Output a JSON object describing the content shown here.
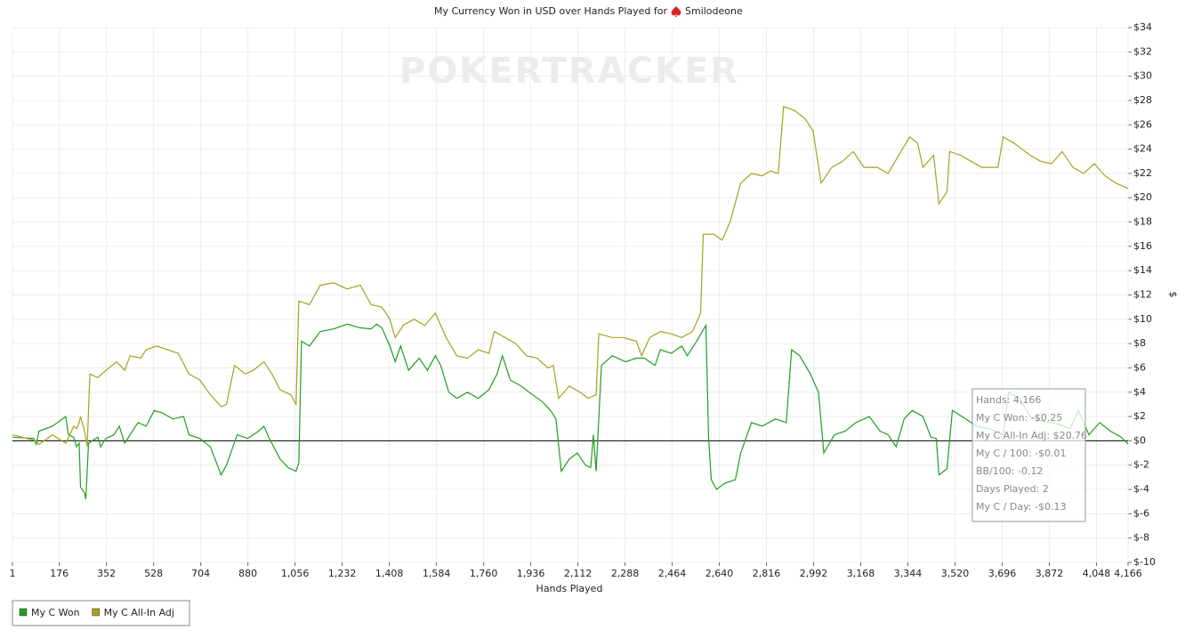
{
  "chart_data": {
    "type": "line",
    "title": "My Currency Won in USD over Hands Played for",
    "player": "Smilodeone",
    "watermark": "POKERTRACKER",
    "xlabel": "Hands Played",
    "ylabel": "$",
    "xlim": [
      1,
      4166
    ],
    "ylim": [
      -10,
      34
    ],
    "xticks": [
      1,
      176,
      352,
      528,
      704,
      880,
      {
        "value": 1056,
        "label": "1,056"
      },
      {
        "value": 1232,
        "label": "1,232"
      },
      {
        "value": 1408,
        "label": "1,408"
      },
      {
        "value": 1584,
        "label": "1,584"
      },
      {
        "value": 1760,
        "label": "1,760"
      },
      {
        "value": 1936,
        "label": "1,936"
      },
      {
        "value": 2112,
        "label": "2,112"
      },
      {
        "value": 2288,
        "label": "2,288"
      },
      {
        "value": 2464,
        "label": "2,464"
      },
      {
        "value": 2640,
        "label": "2,640"
      },
      {
        "value": 2816,
        "label": "2,816"
      },
      {
        "value": 2992,
        "label": "2,992"
      },
      {
        "value": 3168,
        "label": "3,168"
      },
      {
        "value": 3344,
        "label": "3,344"
      },
      {
        "value": 3520,
        "label": "3,520"
      },
      {
        "value": 3696,
        "label": "3,696"
      },
      {
        "value": 3872,
        "label": "3,872"
      },
      {
        "value": 4048,
        "label": "4,048"
      },
      {
        "value": 4166,
        "label": "4,166"
      }
    ],
    "yticks": [
      {
        "value": -10,
        "label": "$-10"
      },
      {
        "value": -8,
        "label": "$-8"
      },
      {
        "value": -6,
        "label": "$-6"
      },
      {
        "value": -4,
        "label": "$-4"
      },
      {
        "value": -2,
        "label": "$-2"
      },
      {
        "value": 0,
        "label": "$0"
      },
      {
        "value": 2,
        "label": "$2"
      },
      {
        "value": 4,
        "label": "$4"
      },
      {
        "value": 6,
        "label": "$6"
      },
      {
        "value": 8,
        "label": "$8"
      },
      {
        "value": 10,
        "label": "$10"
      },
      {
        "value": 12,
        "label": "$12"
      },
      {
        "value": 14,
        "label": "$14"
      },
      {
        "value": 16,
        "label": "$16"
      },
      {
        "value": 18,
        "label": "$18"
      },
      {
        "value": 20,
        "label": "$20"
      },
      {
        "value": 22,
        "label": "$22"
      },
      {
        "value": 24,
        "label": "$24"
      },
      {
        "value": 26,
        "label": "$26"
      },
      {
        "value": 28,
        "label": "$28"
      },
      {
        "value": 30,
        "label": "$30"
      },
      {
        "value": 32,
        "label": "$32"
      },
      {
        "value": 34,
        "label": "$34"
      }
    ],
    "grid": true,
    "legend": "bottom-left",
    "series": [
      {
        "name": "My C Won",
        "color": "#1f9e1f",
        "x": [
          1,
          80,
          90,
          100,
          150,
          200,
          210,
          230,
          240,
          250,
          255,
          270,
          275,
          285,
          320,
          330,
          350,
          380,
          400,
          420,
          440,
          470,
          500,
          530,
          560,
          600,
          640,
          660,
          700,
          740,
          780,
          800,
          840,
          880,
          920,
          940,
          960,
          1000,
          1030,
          1060,
          1070,
          1080,
          1110,
          1150,
          1200,
          1250,
          1300,
          1340,
          1360,
          1380,
          1410,
          1430,
          1450,
          1480,
          1520,
          1550,
          1580,
          1600,
          1630,
          1660,
          1700,
          1740,
          1780,
          1810,
          1830,
          1860,
          1900,
          1930,
          1980,
          2010,
          2030,
          2050,
          2080,
          2110,
          2140,
          2160,
          2170,
          2180,
          2200,
          2240,
          2290,
          2330,
          2360,
          2400,
          2420,
          2460,
          2500,
          2520,
          2550,
          2590,
          2600,
          2610,
          2630,
          2660,
          2700,
          2720,
          2760,
          2800,
          2850,
          2890,
          2910,
          2940,
          2980,
          3010,
          3030,
          3070,
          3110,
          3150,
          3200,
          3240,
          3270,
          3300,
          3330,
          3360,
          3400,
          3430,
          3450,
          3460,
          3490,
          3510,
          3560,
          3600,
          3650,
          3700,
          3720,
          3760,
          3800,
          3850,
          3900,
          3950,
          3980,
          4020,
          4060,
          4100,
          4140,
          4166
        ],
        "values": [
          0.3,
          0.2,
          -0.3,
          0.8,
          1.2,
          2,
          0.5,
          0.3,
          -0.5,
          -0.2,
          -3.8,
          -4.3,
          -4.8,
          -0.2,
          0.3,
          -0.5,
          0.2,
          0.5,
          1.2,
          -0.2,
          0.5,
          1.5,
          1.2,
          2.5,
          2.3,
          1.8,
          2,
          0.5,
          0.2,
          -0.5,
          -2.8,
          -2,
          0.5,
          0.2,
          0.8,
          1.2,
          0.2,
          -1.5,
          -2.2,
          -2.5,
          -1.8,
          8.2,
          7.8,
          9,
          9.2,
          9.6,
          9.3,
          9.2,
          9.6,
          9.3,
          7.8,
          6.5,
          7.8,
          5.8,
          6.8,
          5.8,
          7,
          6.2,
          4,
          3.5,
          4,
          3.5,
          4.2,
          5.5,
          7,
          5,
          4.5,
          4,
          3.2,
          2.5,
          1.8,
          -2.5,
          -1.5,
          -1,
          -2,
          -2.2,
          0.5,
          -2.5,
          6.2,
          7,
          6.5,
          6.8,
          6.8,
          6.2,
          7.5,
          7.2,
          7.8,
          7,
          8,
          9.5,
          0.2,
          -3.2,
          -4,
          -3.5,
          -3.2,
          -1,
          1.5,
          1.2,
          1.8,
          1.5,
          7.5,
          7,
          5.5,
          4,
          -1,
          0.5,
          0.8,
          1.5,
          2,
          0.8,
          0.5,
          -0.5,
          1.8,
          2.5,
          2,
          0.3,
          0.2,
          -2.8,
          -2.3,
          2.5,
          1.8,
          1.2,
          1,
          0.5,
          4,
          3.5,
          2,
          1.6,
          1.4,
          1,
          2.5,
          0.5,
          1.5,
          0.8,
          0.3,
          -0.25
        ]
      },
      {
        "name": "My C All-In Adj",
        "color": "#a3a31c",
        "x": [
          1,
          90,
          100,
          150,
          200,
          230,
          240,
          250,
          255,
          270,
          280,
          290,
          320,
          350,
          390,
          420,
          440,
          480,
          500,
          540,
          580,
          620,
          660,
          700,
          740,
          780,
          800,
          830,
          870,
          900,
          940,
          970,
          1000,
          1040,
          1060,
          1070,
          1110,
          1150,
          1200,
          1250,
          1300,
          1340,
          1380,
          1410,
          1430,
          1460,
          1500,
          1540,
          1580,
          1620,
          1660,
          1700,
          1740,
          1780,
          1800,
          1840,
          1880,
          1920,
          1960,
          2000,
          2020,
          2040,
          2080,
          2120,
          2150,
          2180,
          2190,
          2240,
          2280,
          2330,
          2350,
          2380,
          2420,
          2460,
          2500,
          2540,
          2570,
          2580,
          2620,
          2650,
          2680,
          2720,
          2760,
          2800,
          2830,
          2860,
          2880,
          2920,
          2960,
          2990,
          3020,
          3060,
          3100,
          3140,
          3180,
          3230,
          3270,
          3310,
          3350,
          3380,
          3400,
          3440,
          3460,
          3490,
          3500,
          3540,
          3580,
          3620,
          3680,
          3700,
          3740,
          3800,
          3840,
          3880,
          3920,
          3960,
          4000,
          4040,
          4080,
          4120,
          4166
        ],
        "values": [
          0.5,
          0,
          -0.3,
          0.5,
          -0.2,
          1.2,
          1,
          1.5,
          2,
          0.8,
          -0.5,
          5.5,
          5.2,
          5.8,
          6.5,
          5.8,
          7,
          6.8,
          7.5,
          7.8,
          7.5,
          7.2,
          5.5,
          5,
          3.8,
          2.8,
          3,
          6.2,
          5.5,
          5.8,
          6.5,
          5.5,
          4.2,
          3.8,
          3,
          11.5,
          11.2,
          12.8,
          13,
          12.5,
          12.8,
          11.2,
          11,
          10,
          8.5,
          9.5,
          10,
          9.5,
          10.5,
          8.5,
          7,
          6.8,
          7.5,
          7.2,
          9,
          8.5,
          8,
          7,
          6.8,
          6,
          6.2,
          3.5,
          4.5,
          4,
          3.5,
          3.8,
          8.8,
          8.5,
          8.5,
          8.2,
          7,
          8.5,
          9,
          8.8,
          8.5,
          9,
          10.5,
          17,
          17,
          16.5,
          18,
          21.2,
          22,
          21.8,
          22.2,
          22,
          27.5,
          27.2,
          26.5,
          25.5,
          21.2,
          22.5,
          23,
          23.8,
          22.5,
          22.5,
          22,
          23.5,
          25,
          24.5,
          22.5,
          23.5,
          19.5,
          20.5,
          23.8,
          23.5,
          23,
          22.5,
          22.5,
          25,
          24.5,
          23.5,
          23,
          22.8,
          23.8,
          22.5,
          22,
          22.8,
          21.8,
          21.2,
          20.76
        ]
      }
    ],
    "tooltip": [
      "Hands: 4,166",
      "My C Won: -$0.25",
      "My C All-In Adj: $20.76",
      "My C / 100: -$0.01",
      "BB/100: -0.12",
      "Days Played: 2",
      "My C / Day: -$0.13"
    ]
  }
}
